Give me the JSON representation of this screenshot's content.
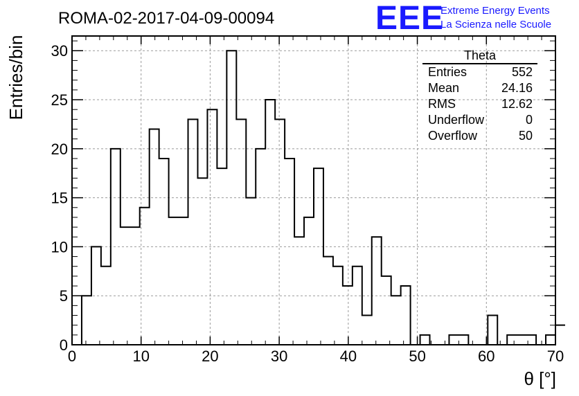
{
  "chart_data": {
    "type": "histogram",
    "title": "ROMA-02-2017-04-09-00094",
    "xlabel": "θ [°]",
    "ylabel": "Entries/bin",
    "xlim": [
      0,
      70
    ],
    "ylim": [
      0,
      31.5
    ],
    "x_ticks": [
      0,
      10,
      20,
      30,
      40,
      50,
      60,
      70
    ],
    "y_ticks": [
      0,
      5,
      10,
      15,
      20,
      25,
      30
    ],
    "grid": true,
    "bin_width": 1.4,
    "bin_start": 1.4,
    "values": [
      5,
      10,
      8,
      20,
      12,
      12,
      14,
      22,
      19,
      13,
      13,
      23,
      17,
      24,
      18,
      30,
      23,
      15,
      20,
      25,
      23,
      19,
      11,
      13,
      18,
      9,
      8,
      6,
      8,
      3,
      11,
      7,
      5,
      6,
      0,
      1,
      0,
      0,
      1,
      1,
      0,
      0,
      3,
      0,
      1,
      1,
      1,
      0,
      1,
      2
    ]
  },
  "stats_box": {
    "name": "Theta",
    "rows": [
      {
        "label": "Entries",
        "value": "552"
      },
      {
        "label": "Mean",
        "value": "24.16"
      },
      {
        "label": "RMS",
        "value": "12.62"
      },
      {
        "label": "Underflow",
        "value": "0"
      },
      {
        "label": "Overflow",
        "value": "50"
      }
    ]
  },
  "logo": {
    "text": "EEE",
    "line1": "Extreme Energy Events",
    "line2": "La Scienza nelle Scuole",
    "color": "#1a1aff"
  }
}
